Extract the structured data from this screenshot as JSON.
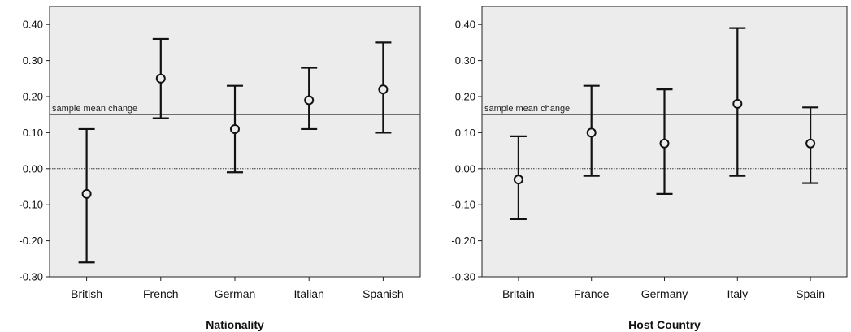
{
  "chart_data": [
    {
      "type": "errorbar",
      "xlabel": "Nationality",
      "categories": [
        "British",
        "French",
        "German",
        "Italian",
        "Spanish"
      ],
      "mean": [
        -0.07,
        0.25,
        0.11,
        0.19,
        0.22
      ],
      "lower": [
        -0.26,
        0.14,
        -0.01,
        0.11,
        0.1
      ],
      "upper": [
        0.11,
        0.36,
        0.23,
        0.28,
        0.35
      ],
      "ylim": [
        -0.3,
        0.45
      ],
      "yticks": [
        "-0.30",
        "-0.20",
        "-0.10",
        "0.00",
        "0.10",
        "0.20",
        "0.30",
        "0.40"
      ],
      "reference_line": {
        "value": 0.15,
        "label": "sample mean change"
      },
      "zero_line": 0.0
    },
    {
      "type": "errorbar",
      "xlabel": "Host Country",
      "categories": [
        "Britain",
        "France",
        "Germany",
        "Italy",
        "Spain"
      ],
      "mean": [
        -0.03,
        0.1,
        0.07,
        0.18,
        0.07
      ],
      "lower": [
        -0.14,
        -0.02,
        -0.07,
        -0.02,
        -0.04
      ],
      "upper": [
        0.09,
        0.23,
        0.22,
        0.39,
        0.17
      ],
      "ylim": [
        -0.3,
        0.45
      ],
      "yticks": [
        "-0.30",
        "-0.20",
        "-0.10",
        "0.00",
        "0.10",
        "0.20",
        "0.30",
        "0.40"
      ],
      "reference_line": {
        "value": 0.15,
        "label": "sample mean change"
      },
      "zero_line": 0.0
    }
  ]
}
